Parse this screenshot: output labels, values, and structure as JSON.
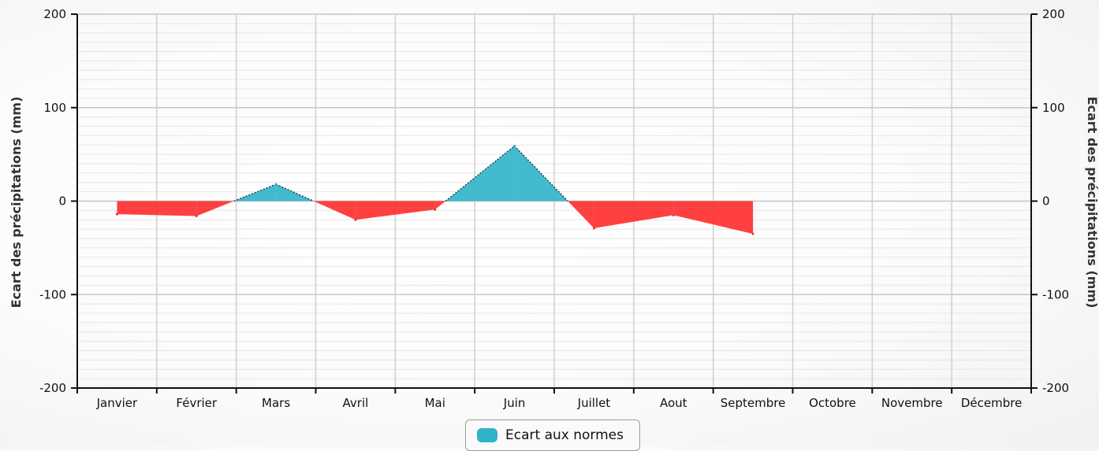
{
  "chart_data": {
    "type": "area",
    "categories": [
      "Janvier",
      "Février",
      "Mars",
      "Avril",
      "Mai",
      "Juin",
      "Juillet",
      "Aout",
      "Septembre",
      "Octobre",
      "Novembre",
      "Décembre"
    ],
    "series": [
      {
        "name": "Ecart aux normes",
        "values": [
          -14,
          -16,
          18,
          -20,
          -9,
          59,
          -29,
          -15,
          -35,
          null,
          null,
          null
        ],
        "positive_color": "#2fb3c9",
        "negative_color": "#ff2b2b"
      }
    ],
    "ylabel_left": "Ecart des précipitations (mm)",
    "ylabel_right": "Ecart des précipitations (mm)",
    "ylim": [
      -200,
      200
    ],
    "y_ticks": [
      200,
      100,
      0,
      -100,
      -200
    ],
    "grid": true,
    "legend_position": "bottom-center"
  }
}
